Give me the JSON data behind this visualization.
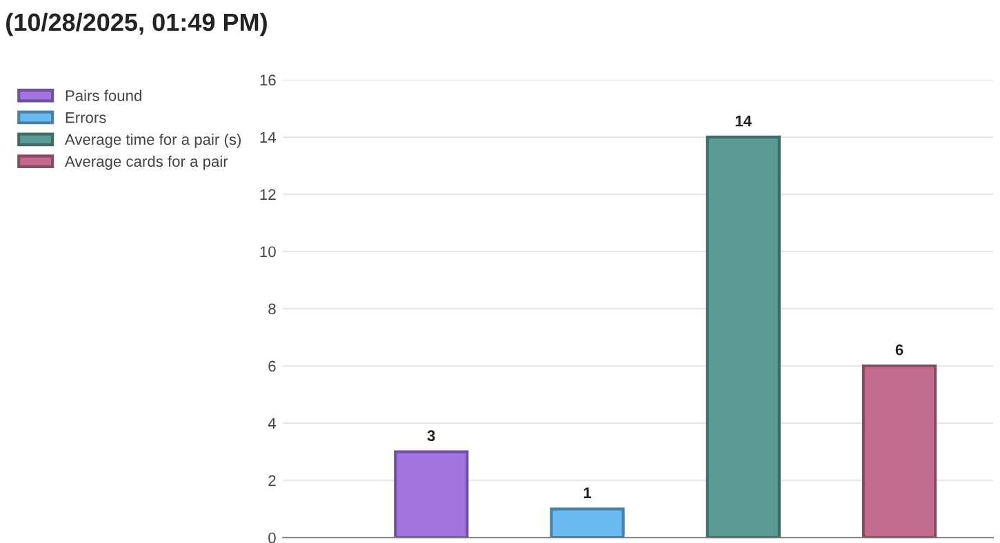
{
  "chart_data": {
    "type": "bar",
    "title": "(10/28/2025, 01:49 PM)",
    "categories": [
      null,
      null,
      null,
      null
    ],
    "series": [
      {
        "name": "Pairs found",
        "color": "#a375e0",
        "values": [
          3,
          null,
          null,
          null
        ]
      },
      {
        "name": "Errors",
        "color": "#68baf0",
        "values": [
          null,
          1,
          null,
          null
        ]
      },
      {
        "name": "Average time for a pair (s)",
        "color": "#5b9b95",
        "values": [
          null,
          null,
          14,
          null
        ]
      },
      {
        "name": "Average cards for a pair",
        "color": "#c26b8c",
        "values": [
          null,
          null,
          null,
          6
        ]
      }
    ],
    "ylim": [
      0,
      16
    ],
    "yticks": [
      0,
      2,
      4,
      6,
      8,
      10,
      12,
      14,
      16
    ],
    "grid": "y",
    "legend": "top left",
    "data_labels": true
  }
}
